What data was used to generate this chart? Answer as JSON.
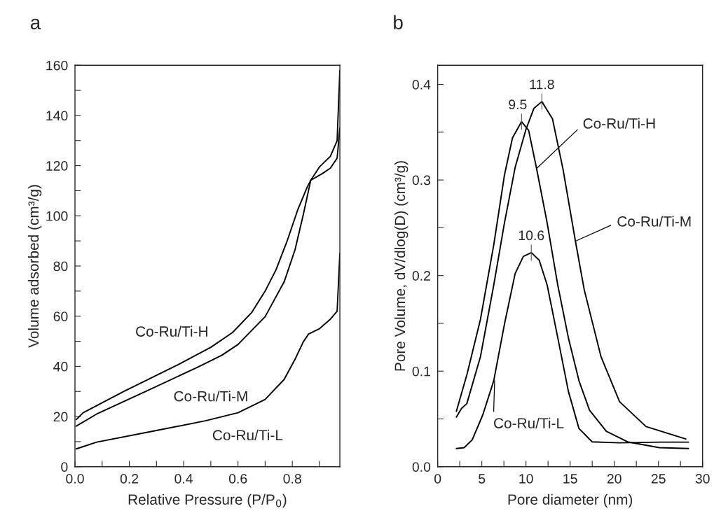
{
  "chart_data": [
    {
      "type": "line",
      "title": "a",
      "xlabel": "Relative Pressure (P/P$_{0}$)",
      "ylabel": "Volume adsorbed (cm³/g)",
      "xlim": [
        0,
        0.975
      ],
      "ylim": [
        0,
        160
      ],
      "xticks": [
        {
          "value": 0,
          "label": "0.0"
        },
        {
          "value": 0.1,
          "label": null
        },
        {
          "value": 0.2,
          "label": "0.2"
        },
        {
          "value": 0.3,
          "label": null
        },
        {
          "value": 0.4,
          "label": "0.4"
        },
        {
          "value": 0.5,
          "label": null
        },
        {
          "value": 0.6,
          "label": "0.6"
        },
        {
          "value": 0.7,
          "label": null
        },
        {
          "value": 0.8,
          "label": "0.8"
        },
        {
          "value": 0.9,
          "label": null
        }
      ],
      "yticks": [
        0,
        {
          "value": 10,
          "label": null
        },
        20,
        {
          "value": 30,
          "label": null
        },
        40,
        {
          "value": 50,
          "label": null
        },
        60,
        {
          "value": 70,
          "label": null
        },
        80,
        {
          "value": 90,
          "label": null
        },
        100,
        {
          "value": 110,
          "label": null
        },
        120,
        {
          "value": 130,
          "label": null
        },
        140,
        {
          "value": 150,
          "label": null
        },
        160
      ],
      "grid": false,
      "legend": false,
      "line_style": "solid",
      "marker": "none",
      "series": [
        {
          "color": "#000000",
          "x": [
            0.005,
            0.03,
            0.18,
            0.38,
            0.5,
            0.58,
            0.65,
            0.7,
            0.74,
            0.78,
            0.82,
            0.855,
            0.868,
            0.91,
            0.94,
            0.965,
            0.975
          ],
          "values": [
            18.8,
            21.5,
            30,
            40.7,
            47.6,
            53.5,
            61.4,
            70,
            78.5,
            89.7,
            102.4,
            111.5,
            114.2,
            116.8,
            119,
            123,
            135
          ]
        },
        {
          "color": "#000000",
          "x": [
            0.005,
            0.08,
            0.28,
            0.45,
            0.54,
            0.6,
            0.7,
            0.77,
            0.81,
            0.84,
            0.868,
            0.9,
            0.94,
            0.965,
            0.975
          ],
          "values": [
            16.2,
            21,
            31,
            39.6,
            44.4,
            48.7,
            59.8,
            73.7,
            86.5,
            100.3,
            114.2,
            119.5,
            123.7,
            130,
            158
          ]
        },
        {
          "color": "#000000",
          "x": [
            0.005,
            0.08,
            0.28,
            0.48,
            0.6,
            0.7,
            0.77,
            0.81,
            0.84,
            0.86,
            0.9,
            0.94,
            0.965,
            0.975
          ],
          "values": [
            7.1,
            9.8,
            14,
            18.3,
            21.5,
            26.8,
            34.8,
            42.8,
            49.7,
            52.9,
            55,
            58.8,
            62,
            85
          ]
        }
      ],
      "annotations": [
        {
          "text": "Co-Ru/Ti-H",
          "x": 0.5,
          "y": 47.6
        },
        {
          "text": "Co-Ru/Ti-M",
          "x": 0.45,
          "y": 39.6
        },
        {
          "text": "Co-Ru/Ti-L",
          "x": 0.7,
          "y": 26.8
        }
      ]
    },
    {
      "type": "line",
      "title": "b",
      "xlabel": "Pore diameter (nm)",
      "ylabel": "Pore Volume, dV/dlog(D) (cm³/g)",
      "xlim": [
        0,
        30
      ],
      "ylim": [
        0,
        0.42
      ],
      "xticks": [
        0,
        {
          "value": 2.5,
          "label": null
        },
        5,
        {
          "value": 7.5,
          "label": null
        },
        10,
        {
          "value": 12.5,
          "label": null
        },
        15,
        {
          "value": 17.5,
          "label": null
        },
        20,
        {
          "value": 22.5,
          "label": null
        },
        25,
        {
          "value": 27.5,
          "label": null
        },
        30
      ],
      "yticks": [
        {
          "value": 0,
          "label": "0.0"
        },
        {
          "value": 0.05,
          "label": null
        },
        0.1,
        {
          "value": 0.15,
          "label": null
        },
        0.2,
        {
          "value": 0.25,
          "label": null
        },
        0.3,
        {
          "value": 0.35,
          "label": null
        },
        0.4
      ],
      "grid": false,
      "legend": false,
      "line_style": "solid",
      "marker": "none",
      "series": [
        {
          "color": "#000000",
          "x": [
            2.12,
            3.33,
            4.84,
            6.35,
            7.56,
            8.47,
            9.5,
            10.3,
            11.2,
            12.4,
            13.6,
            14.8,
            16.0,
            17.2,
            19.1,
            21.5,
            25.1,
            28.4
          ],
          "values": [
            0.058,
            0.097,
            0.154,
            0.232,
            0.305,
            0.344,
            0.361,
            0.352,
            0.312,
            0.255,
            0.19,
            0.135,
            0.09,
            0.059,
            0.037,
            0.026,
            0.02,
            0.019
          ]
        },
        {
          "color": "#000000",
          "x": [
            2.12,
            2.7,
            3.3,
            4.84,
            6.35,
            7.56,
            8.77,
            10.0,
            10.9,
            11.8,
            13.0,
            14.2,
            15.6,
            16.6,
            18.5,
            20.6,
            23.6,
            28.1
          ],
          "values": [
            0.052,
            0.061,
            0.066,
            0.115,
            0.19,
            0.255,
            0.313,
            0.353,
            0.375,
            0.382,
            0.364,
            0.311,
            0.236,
            0.185,
            0.115,
            0.068,
            0.042,
            0.029
          ]
        },
        {
          "color": "#000000",
          "x": [
            2.12,
            3.0,
            3.9,
            5.1,
            6.35,
            7.56,
            8.77,
            9.7,
            10.6,
            11.5,
            12.4,
            13.6,
            14.8,
            16.0,
            17.5,
            20.6,
            25.1,
            28.4
          ],
          "values": [
            0.019,
            0.02,
            0.028,
            0.054,
            0.09,
            0.149,
            0.202,
            0.22,
            0.224,
            0.216,
            0.19,
            0.135,
            0.079,
            0.04,
            0.026,
            0.025,
            0.0257,
            0.0257
          ]
        }
      ],
      "annotations": [
        {
          "text": "9.5",
          "x": 9.5,
          "y": 0.361
        },
        {
          "text": "11.8",
          "x": 11.8,
          "y": 0.382
        },
        {
          "text": "10.6",
          "x": 10.6,
          "y": 0.224
        },
        {
          "text": "Co-Ru/Ti-H",
          "x": 11.2,
          "y": 0.312
        },
        {
          "text": "Co-Ru/Ti-M",
          "x": 15.6,
          "y": 0.236
        },
        {
          "text": "Co-Ru/Ti-L",
          "x": 6.45,
          "y": 0.09
        }
      ]
    }
  ]
}
